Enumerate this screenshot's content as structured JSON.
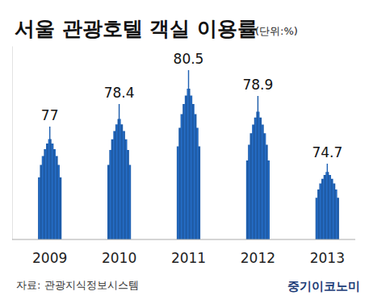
{
  "chart_data": {
    "type": "bar",
    "title": "서울 관광호텔 객실 이용률",
    "subtitle": "(단위:%)",
    "categories": [
      "2009",
      "2010",
      "2011",
      "2012",
      "2013"
    ],
    "values": [
      77,
      78.4,
      80.5,
      78.9,
      74.7
    ],
    "color": "#1f5ca8",
    "ylim": [
      70,
      82
    ],
    "tick_labels": "x",
    "data_labels": true,
    "grid": false,
    "source": "자료: 관광지식정보시스템",
    "annotations": [
      "중기이코노미"
    ]
  }
}
